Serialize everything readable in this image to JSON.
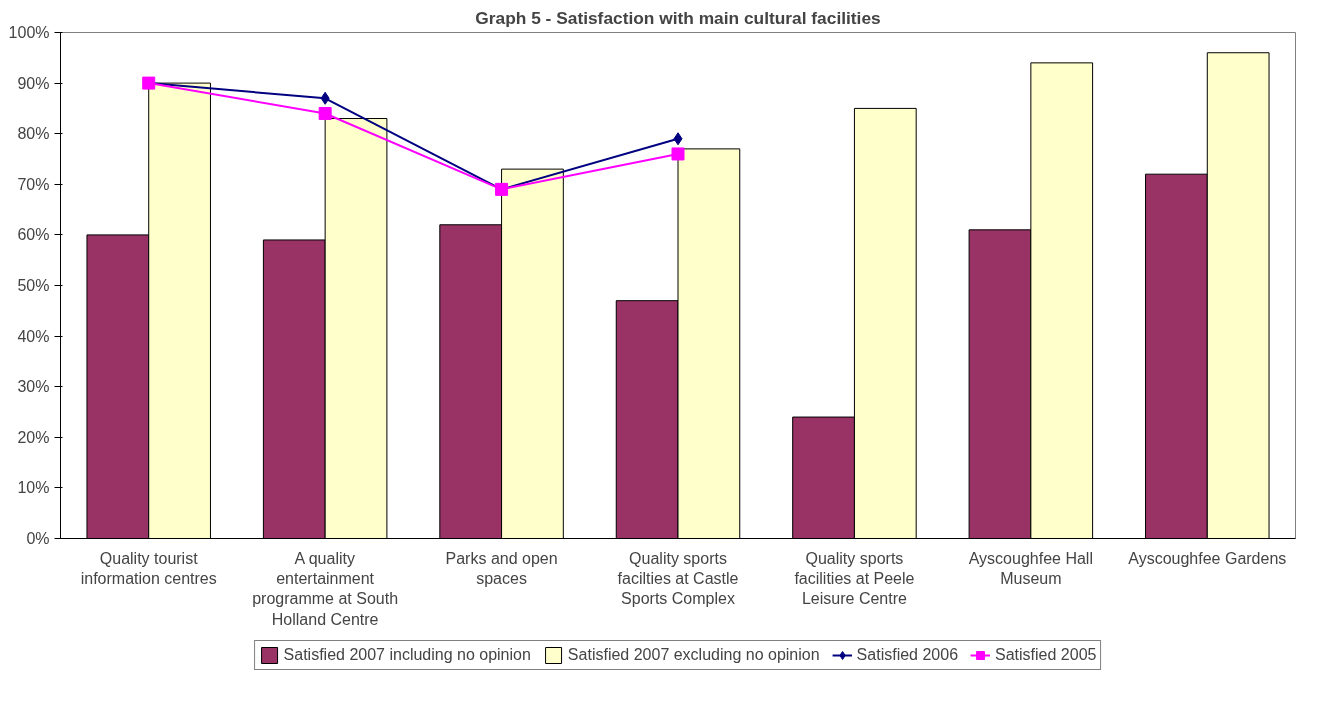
{
  "chart_data": {
    "type": "bar",
    "title": "Graph 5 - Satisfaction with main cultural facilities",
    "categories": [
      "Quality tourist information centres",
      "A quality entertainment programme at South Holland Centre",
      "Parks and open spaces",
      "Quality sports facilties at Castle Sports Complex",
      "Quality sports facilities at Peele Leisure Centre",
      "Ayscoughfee Hall Museum",
      "Ayscoughfee Gardens"
    ],
    "series": [
      {
        "name": "Satisfied 2007 including no opinion",
        "color": "#993366",
        "values": [
          60,
          59,
          62,
          47,
          24,
          61,
          72
        ]
      },
      {
        "name": "Satisfied 2007 excluding no opinion",
        "color": "#ffffcc",
        "values": [
          90,
          83,
          73,
          77,
          85,
          94,
          96
        ]
      },
      {
        "name": "Satisfied 2006",
        "type": "line",
        "color": "#000080",
        "marker": "diamond",
        "values": [
          90,
          87,
          69,
          79,
          null,
          null,
          null
        ]
      },
      {
        "name": "Satisfied 2005",
        "type": "line",
        "color": "#ff00ff",
        "marker": "square",
        "values": [
          90,
          84,
          69,
          76,
          null,
          null,
          null
        ]
      }
    ],
    "ylim": [
      0,
      100
    ],
    "yticks": [
      {
        "value": 0,
        "label": "0%"
      },
      {
        "value": 10,
        "label": "10%"
      },
      {
        "value": 20,
        "label": "20%"
      },
      {
        "value": 30,
        "label": "30%"
      },
      {
        "value": 40,
        "label": "40%"
      },
      {
        "value": 50,
        "label": "50%"
      },
      {
        "value": 60,
        "label": "60%"
      },
      {
        "value": 70,
        "label": "70%"
      },
      {
        "value": 80,
        "label": "80%"
      },
      {
        "value": 90,
        "label": "90%"
      },
      {
        "value": 100,
        "label": "100%"
      }
    ],
    "legend": "bottom",
    "grid": false
  }
}
